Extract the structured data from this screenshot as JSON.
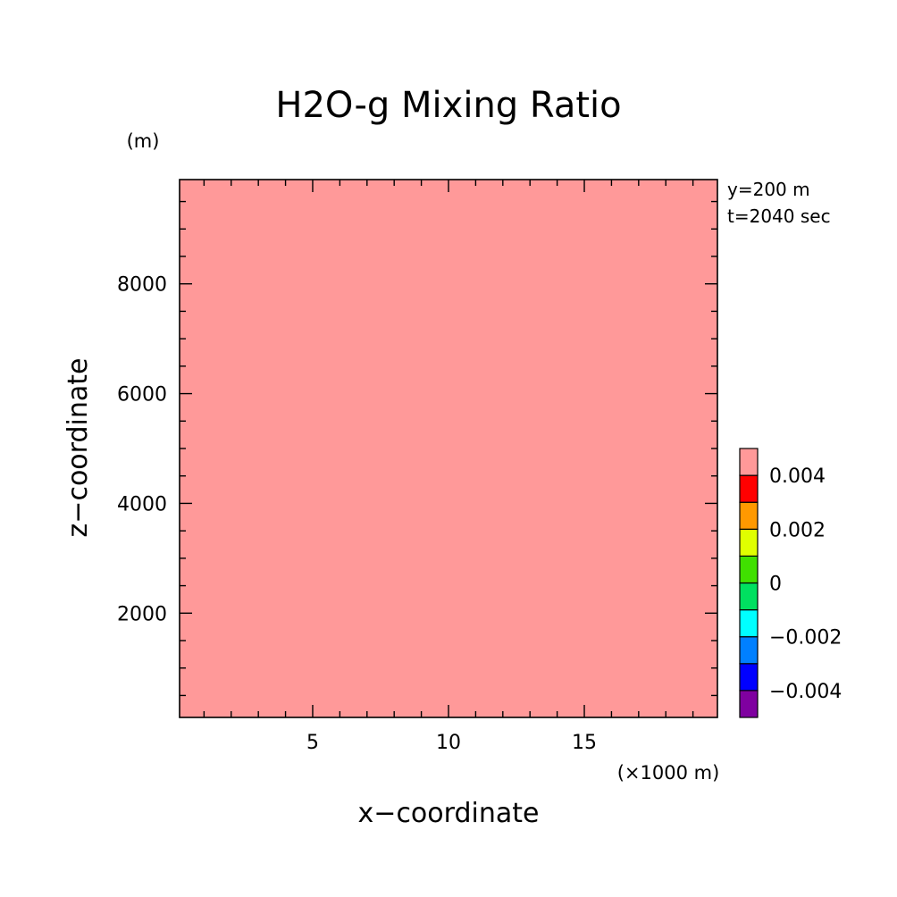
{
  "chart_data": {
    "type": "heatmap",
    "title": "H2O-g Mixing Ratio",
    "xlabel": "x−coordinate",
    "ylabel": "z−coordinate",
    "x_unit": "(×1000 m)",
    "y_unit": "(m)",
    "xlim": [
      0.1,
      19.9
    ],
    "ylim": [
      100,
      9900
    ],
    "x_ticks": [
      5,
      10,
      15
    ],
    "x_tick_labels": [
      "5",
      "10",
      "15"
    ],
    "y_ticks": [
      2000,
      4000,
      6000,
      8000
    ],
    "y_tick_labels": [
      "2000",
      "4000",
      "6000",
      "8000"
    ],
    "field_value": "above 0.004",
    "fill_color": "#ff9999",
    "annotations": [
      "y=200 m",
      "t=2040 sec"
    ],
    "colorbar": {
      "levels": [
        {
          "color": "#7f00a0"
        },
        {
          "color": "#0000ff"
        },
        {
          "color": "#0080ff"
        },
        {
          "color": "#00ffff"
        },
        {
          "color": "#00e060"
        },
        {
          "color": "#40e000"
        },
        {
          "color": "#e0ff00"
        },
        {
          "color": "#ff9900"
        },
        {
          "color": "#ff0000"
        },
        {
          "color": "#ff9999"
        }
      ],
      "tick_values": [
        0.004,
        0.002,
        0,
        -0.002,
        -0.004
      ],
      "tick_labels": [
        "0.004",
        "0.002",
        "0",
        "−0.002",
        "−0.004"
      ]
    }
  }
}
